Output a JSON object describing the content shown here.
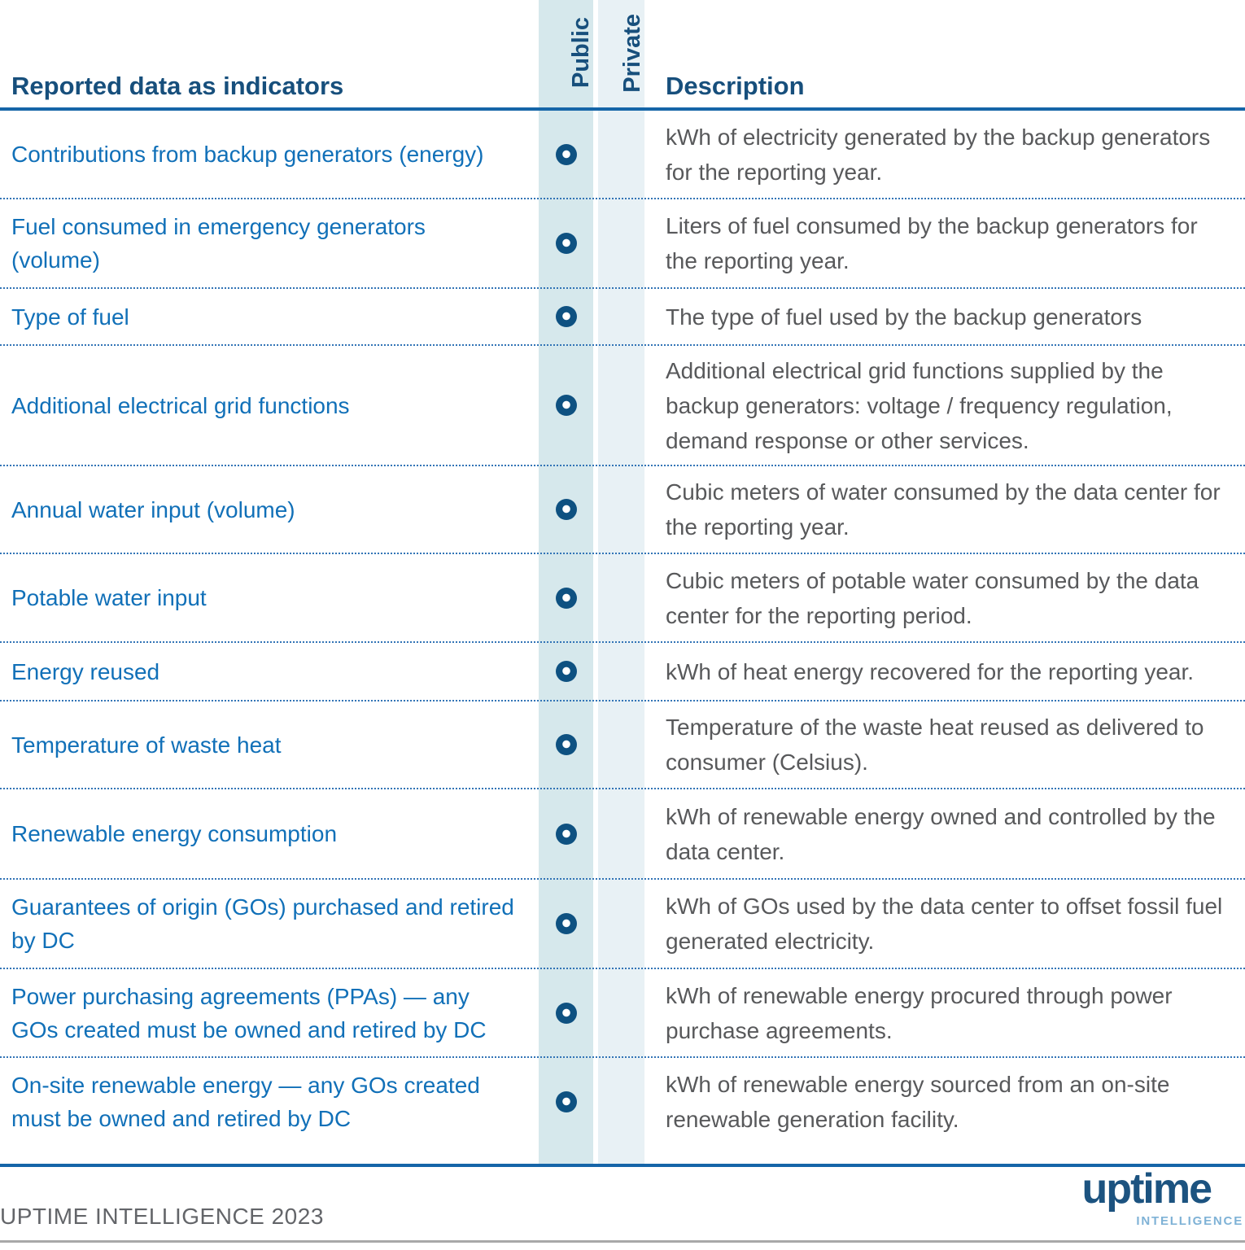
{
  "table": {
    "indicator_header": "Reported data as indicators",
    "public_header": "Public",
    "private_header": "Private",
    "description_header": "Description",
    "rows": [
      {
        "indicator": "Contributions from backup generators (energy)",
        "public": true,
        "private": false,
        "description": "kWh of electricity generated by the backup generators for the reporting year."
      },
      {
        "indicator": "Fuel consumed in emergency generators (volume)",
        "public": true,
        "private": false,
        "description": "Liters of fuel consumed by the backup generators for the reporting year."
      },
      {
        "indicator": "Type of fuel",
        "public": true,
        "private": false,
        "description": "The type of fuel used by the backup generators"
      },
      {
        "indicator": "Additional electrical grid functions",
        "public": true,
        "private": false,
        "description": "Additional electrical grid functions supplied by the backup generators: voltage / frequency regulation, demand response or other services."
      },
      {
        "indicator": "Annual water input (volume)",
        "public": true,
        "private": false,
        "description": "Cubic meters of water consumed by the data center for the reporting year."
      },
      {
        "indicator": "Potable water input",
        "public": true,
        "private": false,
        "description": "Cubic meters of potable water consumed by the data center for the reporting period."
      },
      {
        "indicator": "Energy reused",
        "public": true,
        "private": false,
        "description": "kWh of heat energy recovered for the reporting year."
      },
      {
        "indicator": "Temperature of waste heat",
        "public": true,
        "private": false,
        "description": "Temperature of the waste heat reused as delivered to consumer (Celsius)."
      },
      {
        "indicator": "Renewable energy consumption",
        "public": true,
        "private": false,
        "description": "kWh of renewable energy owned and controlled by the data center."
      },
      {
        "indicator": "Guarantees of origin (GOs) purchased and retired by DC",
        "public": true,
        "private": false,
        "description": "kWh of GOs used by the data center to offset fossil fuel generated electricity."
      },
      {
        "indicator": "Power purchasing agreements (PPAs) — any GOs created must be owned and retired by DC",
        "public": true,
        "private": false,
        "description": "kWh of renewable energy procured through power purchase agreements."
      },
      {
        "indicator": "On-site renewable energy — any GOs created must be owned and retired by DC",
        "public": true,
        "private": false,
        "description": "kWh of renewable energy sourced from an on-site renewable generation facility."
      }
    ]
  },
  "footer": {
    "copyright": "UPTIME INTELLIGENCE 2023",
    "logo_wordmark": "uptime",
    "logo_subtext": "INTELLIGENCE"
  },
  "colors": {
    "header_navy": "#174f7c",
    "indicator_blue": "#1170b8",
    "description_gray": "#58595b",
    "public_band": "#d6e8ec",
    "private_band": "#e8f1f5",
    "bullet_navy": "#0e5181",
    "rule_blue": "#1565a8",
    "dotted_blue": "#3274b6",
    "logo_navy": "#1c5380",
    "logo_lightblue": "#7fb2d6"
  }
}
